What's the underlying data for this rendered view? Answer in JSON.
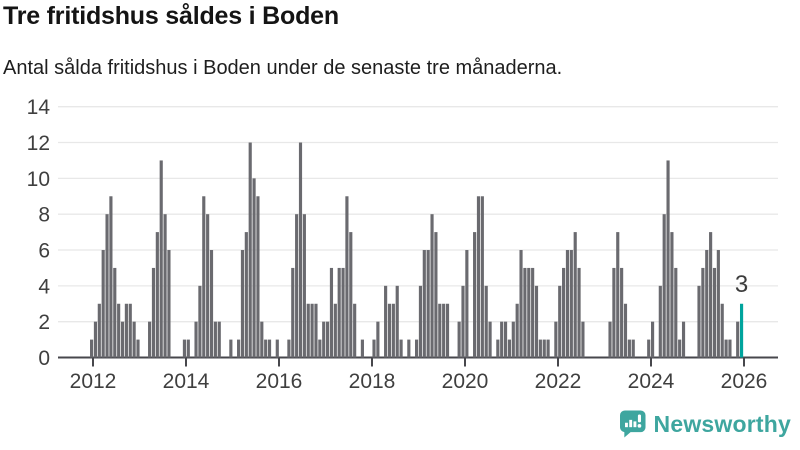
{
  "header": {
    "title": "Tre fritidshus såldes i Boden",
    "subtitle": "Antal sålda fritidshus i Boden under de senaste tre månaderna."
  },
  "chart_data": {
    "type": "bar",
    "title": "Tre fritidshus såldes i Boden",
    "subtitle": "Antal sålda fritidshus i Boden under de senaste tre månaderna.",
    "frequency": "monthly",
    "start_month": "2012-01",
    "end_month": "2026-01",
    "values": [
      1,
      2,
      3,
      6,
      8,
      9,
      5,
      3,
      2,
      3,
      3,
      2,
      1,
      0,
      0,
      2,
      5,
      7,
      11,
      8,
      6,
      0,
      0,
      0,
      1,
      1,
      0,
      2,
      4,
      9,
      8,
      6,
      2,
      2,
      0,
      0,
      1,
      0,
      1,
      6,
      7,
      12,
      10,
      9,
      2,
      1,
      1,
      0,
      1,
      0,
      0,
      1,
      5,
      8,
      12,
      8,
      3,
      3,
      3,
      1,
      2,
      2,
      5,
      3,
      5,
      5,
      9,
      7,
      3,
      0,
      1,
      0,
      0,
      1,
      2,
      0,
      4,
      3,
      3,
      4,
      1,
      0,
      1,
      0,
      1,
      4,
      6,
      6,
      8,
      7,
      3,
      3,
      3,
      0,
      0,
      2,
      4,
      6,
      0,
      7,
      9,
      9,
      4,
      2,
      0,
      1,
      2,
      2,
      1,
      2,
      3,
      6,
      5,
      5,
      5,
      4,
      1,
      1,
      1,
      0,
      2,
      4,
      5,
      6,
      6,
      7,
      5,
      2,
      0,
      0,
      0,
      0,
      0,
      0,
      2,
      5,
      7,
      5,
      3,
      1,
      1,
      0,
      0,
      0,
      1,
      2,
      0,
      4,
      8,
      11,
      7,
      5,
      1,
      2,
      0,
      0,
      0,
      4,
      5,
      6,
      7,
      5,
      6,
      3,
      1,
      1,
      0,
      2,
      3
    ],
    "ylim": [
      0,
      14
    ],
    "y_ticks": [
      0,
      2,
      4,
      6,
      8,
      10,
      12,
      14
    ],
    "x_tick_years": [
      2012,
      2014,
      2016,
      2018,
      2020,
      2022,
      2024,
      2026
    ],
    "grid": "horizontal",
    "legend": "none",
    "bar_color": "#6a6a6f",
    "highlight": {
      "index": 168,
      "value": 3,
      "label": "3",
      "color": "#00a49d"
    },
    "axis_text_color": "#3f3f3f",
    "gridline_color": "#e8e8e8",
    "zero_line_color": "#47474c"
  },
  "annotation": {
    "last_value_label": "3"
  },
  "footer": {
    "brand": "Newsworthy",
    "brand_color": "#3ea69f",
    "logo_icon": "speech-bubble-bar-chart-icon"
  }
}
